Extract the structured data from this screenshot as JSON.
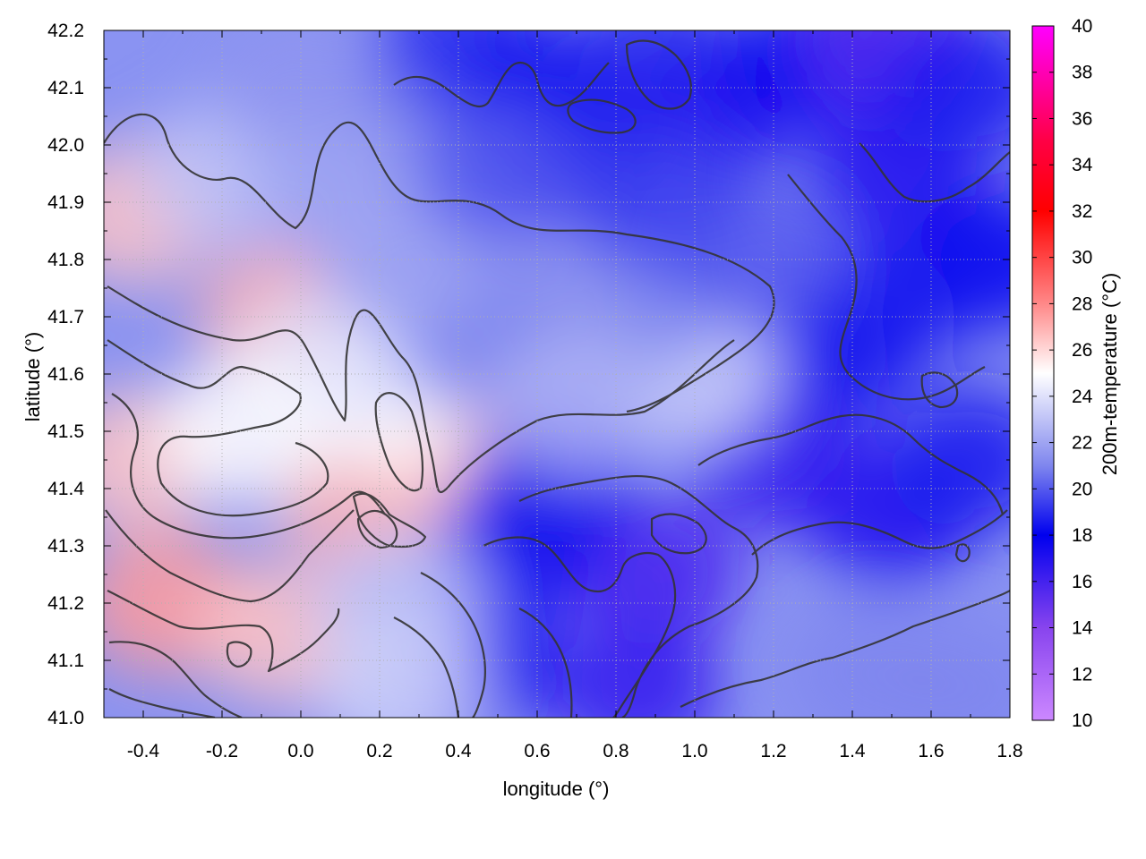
{
  "chart_data": {
    "type": "heatmap",
    "title": "",
    "xlabel": "longitude (°)",
    "ylabel": "latitude (°)",
    "colorbar_label": "200m-temperature (°C)",
    "xlim": [
      -0.5,
      1.8
    ],
    "ylim": [
      41.0,
      42.2
    ],
    "x_ticks": [
      "-0.4",
      "-0.2",
      "0.0",
      "0.2",
      "0.4",
      "0.6",
      "0.8",
      "1.0",
      "1.2",
      "1.4",
      "1.6",
      "1.8"
    ],
    "x_tick_values": [
      -0.4,
      -0.2,
      0.0,
      0.2,
      0.4,
      0.6,
      0.8,
      1.0,
      1.2,
      1.4,
      1.6,
      1.8
    ],
    "y_ticks": [
      "41.0",
      "41.1",
      "41.2",
      "41.3",
      "41.4",
      "41.5",
      "41.6",
      "41.7",
      "41.8",
      "41.9",
      "42.0",
      "42.1",
      "42.2"
    ],
    "y_tick_values": [
      41.0,
      41.1,
      41.2,
      41.3,
      41.4,
      41.5,
      41.6,
      41.7,
      41.8,
      41.9,
      42.0,
      42.1,
      42.2
    ],
    "colorbar_range": [
      10,
      40
    ],
    "colorbar_ticks": [
      "10",
      "12",
      "14",
      "16",
      "18",
      "20",
      "22",
      "24",
      "26",
      "28",
      "30",
      "32",
      "34",
      "36",
      "38",
      "40"
    ],
    "colorbar_tick_values": [
      10,
      12,
      14,
      16,
      18,
      20,
      22,
      24,
      26,
      28,
      30,
      32,
      34,
      36,
      38,
      40
    ],
    "colormap": [
      {
        "value": 10,
        "color": "#cc88ff"
      },
      {
        "value": 14,
        "color": "#8844ee"
      },
      {
        "value": 18,
        "color": "#0000ee"
      },
      {
        "value": 21,
        "color": "#7f86ee"
      },
      {
        "value": 25,
        "color": "#ffffff"
      },
      {
        "value": 28,
        "color": "#ff8888"
      },
      {
        "value": 32,
        "color": "#ff0000"
      },
      {
        "value": 35,
        "color": "#ff0044"
      },
      {
        "value": 40,
        "color": "#ff00ff"
      }
    ],
    "grid": true,
    "field_samples": [
      {
        "x": -0.42,
        "y": 41.88,
        "value": 26.5
      },
      {
        "x": -0.05,
        "y": 41.7,
        "value": 27.0
      },
      {
        "x": -0.42,
        "y": 41.45,
        "value": 26.5
      },
      {
        "x": -0.35,
        "y": 41.2,
        "value": 27.5
      },
      {
        "x": -0.05,
        "y": 41.15,
        "value": 26.5
      },
      {
        "x": 0.15,
        "y": 41.38,
        "value": 27.0
      },
      {
        "x": 0.42,
        "y": 41.45,
        "value": 26.5
      },
      {
        "x": 0.2,
        "y": 41.55,
        "value": 25.0
      },
      {
        "x": 0.05,
        "y": 41.62,
        "value": 24.0
      },
      {
        "x": -0.15,
        "y": 41.5,
        "value": 25.0
      },
      {
        "x": -0.2,
        "y": 41.95,
        "value": 23.0
      },
      {
        "x": 0.0,
        "y": 42.1,
        "value": 21.5
      },
      {
        "x": 0.3,
        "y": 42.0,
        "value": 21.0
      },
      {
        "x": 0.4,
        "y": 42.18,
        "value": 19.0
      },
      {
        "x": 0.6,
        "y": 42.1,
        "value": 18.5
      },
      {
        "x": 0.75,
        "y": 42.05,
        "value": 17.5
      },
      {
        "x": 0.7,
        "y": 41.95,
        "value": 17.5
      },
      {
        "x": 0.9,
        "y": 42.15,
        "value": 19.0
      },
      {
        "x": 1.05,
        "y": 42.05,
        "value": 17.0
      },
      {
        "x": 1.3,
        "y": 42.15,
        "value": 18.0
      },
      {
        "x": 1.5,
        "y": 42.18,
        "value": 15.5
      },
      {
        "x": 1.5,
        "y": 41.95,
        "value": 17.0
      },
      {
        "x": 1.7,
        "y": 42.1,
        "value": 18.5
      },
      {
        "x": 1.75,
        "y": 41.8,
        "value": 18.0
      },
      {
        "x": 1.45,
        "y": 41.7,
        "value": 17.5
      },
      {
        "x": 1.3,
        "y": 41.6,
        "value": 18.5
      },
      {
        "x": 1.2,
        "y": 41.45,
        "value": 16.5
      },
      {
        "x": 1.5,
        "y": 41.35,
        "value": 17.0
      },
      {
        "x": 1.7,
        "y": 41.45,
        "value": 18.5
      },
      {
        "x": 0.9,
        "y": 41.25,
        "value": 16.0
      },
      {
        "x": 0.85,
        "y": 41.05,
        "value": 16.5
      },
      {
        "x": 0.55,
        "y": 41.3,
        "value": 18.0
      },
      {
        "x": 0.45,
        "y": 41.1,
        "value": 17.5
      },
      {
        "x": 0.65,
        "y": 41.42,
        "value": 18.5
      },
      {
        "x": 1.45,
        "y": 41.08,
        "value": 21.0
      },
      {
        "x": 1.7,
        "y": 41.05,
        "value": 21.0
      },
      {
        "x": 1.0,
        "y": 41.6,
        "value": 23.5
      },
      {
        "x": 0.85,
        "y": 41.72,
        "value": 21.0
      },
      {
        "x": 0.6,
        "y": 41.75,
        "value": 21.5
      },
      {
        "x": 0.45,
        "y": 41.65,
        "value": 21.0
      },
      {
        "x": 0.7,
        "y": 41.55,
        "value": 22.5
      },
      {
        "x": 0.25,
        "y": 41.8,
        "value": 22.0
      },
      {
        "x": 0.1,
        "y": 41.92,
        "value": 22.0
      },
      {
        "x": 0.25,
        "y": 41.2,
        "value": 23.0
      },
      {
        "x": 0.25,
        "y": 41.05,
        "value": 23.5
      },
      {
        "x": 1.15,
        "y": 41.8,
        "value": 20.0
      },
      {
        "x": 0.9,
        "y": 41.9,
        "value": 19.5
      },
      {
        "x": 0.5,
        "y": 41.95,
        "value": 20.0
      }
    ]
  }
}
